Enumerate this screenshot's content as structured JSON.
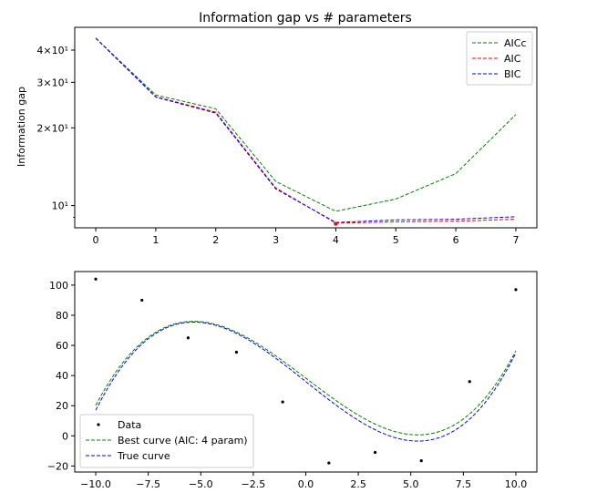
{
  "chart_data": [
    {
      "type": "line",
      "title": "Information gap vs # parameters",
      "xlabel": "",
      "ylabel": "Information gap",
      "yscale": "log",
      "xlim": [
        -0.35,
        7.35
      ],
      "ylim": [
        8.2,
        49
      ],
      "x_ticks": [
        0,
        1,
        2,
        3,
        4,
        5,
        6,
        7
      ],
      "y_major_ticks": [
        {
          "value": 10,
          "label": "10¹"
        },
        {
          "value": 20,
          "label": "2×10¹"
        },
        {
          "value": 30,
          "label": "3×10¹"
        },
        {
          "value": 40,
          "label": "4×10¹"
        }
      ],
      "y_minor_ticks": [
        9
      ],
      "legend_position": "top-right",
      "x": [
        0,
        1,
        2,
        3,
        4,
        5,
        6,
        7
      ],
      "series": [
        {
          "name": "AICc",
          "color": "#008000",
          "style": "dashed",
          "values": [
            44.5,
            26.8,
            23.7,
            12.4,
            9.5,
            10.6,
            13.3,
            22.5
          ]
        },
        {
          "name": "AIC",
          "color": "#ff0000",
          "style": "dashed",
          "values": [
            44.5,
            26.4,
            23.0,
            11.7,
            8.55,
            8.65,
            8.7,
            8.85
          ]
        },
        {
          "name": "BIC",
          "color": "#0000ff",
          "style": "dashed",
          "values": [
            44.5,
            26.3,
            22.8,
            11.6,
            8.6,
            8.8,
            8.85,
            9.05
          ]
        }
      ],
      "markers": [
        {
          "x": 4,
          "y": 8.5,
          "color": "#ff0000"
        }
      ]
    },
    {
      "type": "scatter",
      "title": "",
      "xlabel": "",
      "ylabel": "",
      "xlim": [
        -11.0,
        11.0
      ],
      "ylim": [
        -24,
        109
      ],
      "x_ticks": [
        -10.0,
        -7.5,
        -5.0,
        -2.5,
        0.0,
        2.5,
        5.0,
        7.5,
        10.0
      ],
      "x_tick_labels": [
        "−10.0",
        "−7.5",
        "−5.0",
        "−2.5",
        "0.0",
        "2.5",
        "5.0",
        "7.5",
        "10.0"
      ],
      "y_ticks": [
        -20,
        0,
        20,
        40,
        60,
        80,
        100
      ],
      "y_tick_labels": [
        "−20",
        "0",
        "20",
        "40",
        "60",
        "80",
        "100"
      ],
      "legend_position": "lower-left",
      "legend": [
        {
          "name": "Data",
          "kind": "dot",
          "color": "#000000"
        },
        {
          "name": "Best curve (AIC: 4 param)",
          "kind": "dashed",
          "color": "#008000"
        },
        {
          "name": "True curve",
          "kind": "dashed",
          "color": "#0000ff"
        }
      ],
      "points": [
        {
          "x": -10.0,
          "y": 104
        },
        {
          "x": -7.8,
          "y": 90
        },
        {
          "x": -5.6,
          "y": 65
        },
        {
          "x": -3.3,
          "y": 55.5
        },
        {
          "x": -1.1,
          "y": 22.5
        },
        {
          "x": 1.1,
          "y": -18
        },
        {
          "x": 3.3,
          "y": -11
        },
        {
          "x": 5.5,
          "y": -16.5
        },
        {
          "x": 7.8,
          "y": 36
        },
        {
          "x": 10.0,
          "y": 97
        }
      ],
      "curves": [
        {
          "name": "Best curve (AIC: 4 param)",
          "color": "#008000",
          "style": "dashed",
          "coeffs": [
            38.3,
            -10.59,
            0.0,
            0.124
          ]
        },
        {
          "name": "True curve",
          "color": "#0000ff",
          "style": "dashed",
          "coeffs": [
            36.0,
            -11.1,
            0.0,
            0.13
          ]
        }
      ],
      "curve_range": [
        -10.0,
        10.0
      ]
    }
  ]
}
